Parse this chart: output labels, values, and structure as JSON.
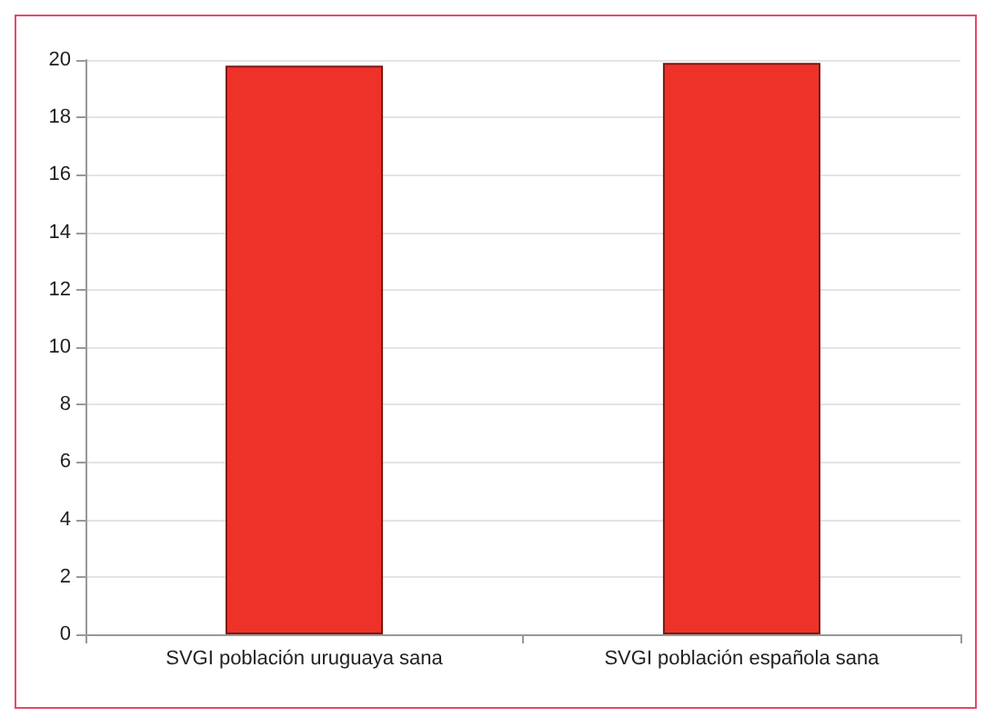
{
  "chart_data": {
    "type": "bar",
    "categories": [
      "SVGI población uruguaya sana",
      "SVGI población española sana"
    ],
    "values": [
      19.8,
      19.9
    ],
    "color": "#ee3229",
    "ylim": [
      0,
      20
    ],
    "yticks": [
      0,
      2,
      4,
      6,
      8,
      10,
      12,
      14,
      16,
      18,
      20
    ],
    "grid": "y"
  }
}
